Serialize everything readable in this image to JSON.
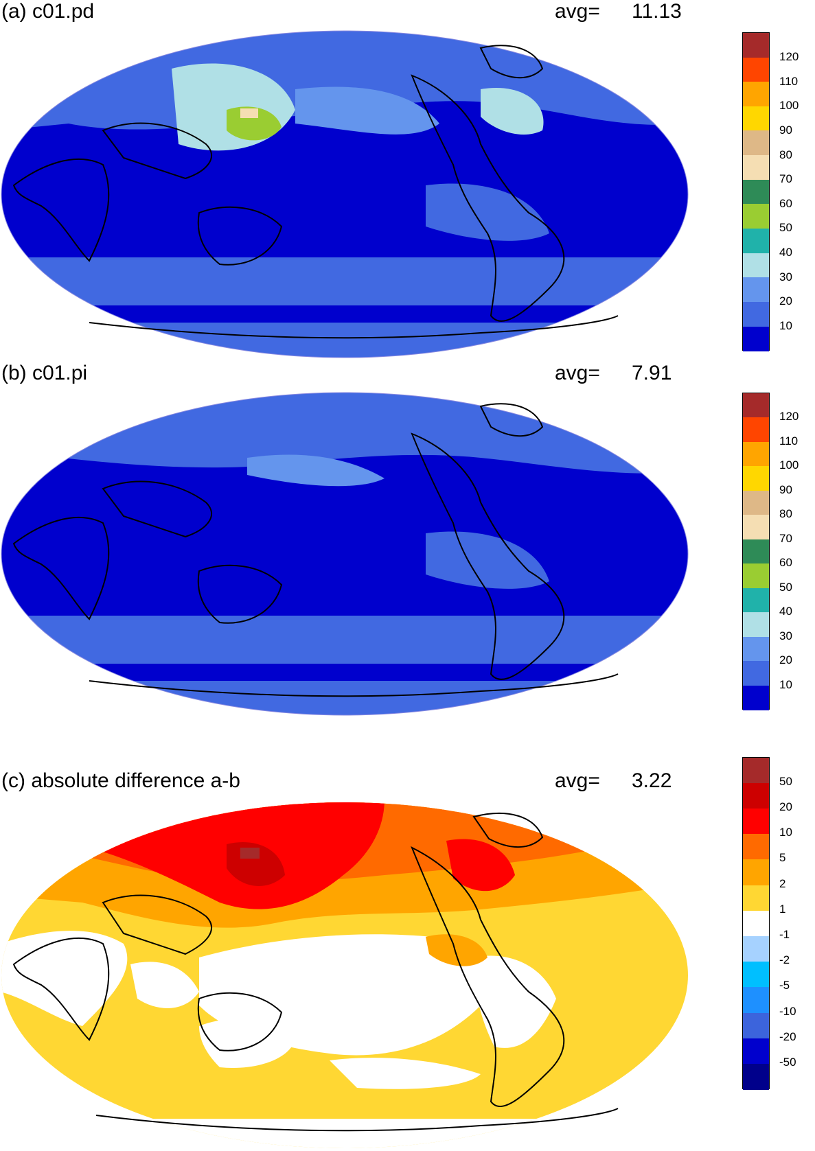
{
  "panels": [
    {
      "title": "(a) c01.pd",
      "avg_label": "avg=",
      "avg_value": "11.13",
      "legend": {
        "labels": [
          "120",
          "110",
          "100",
          "90",
          "80",
          "70",
          "60",
          "50",
          "40",
          "30",
          "20",
          "10"
        ],
        "colors": [
          "#a52a2a",
          "#ff4500",
          "#ffa500",
          "#ffd700",
          "#deb887",
          "#f5deb3",
          "#2e8b57",
          "#9acd32",
          "#20b2aa",
          "#b0e0e6",
          "#6495ed",
          "#4169e1",
          "#0000cd"
        ]
      }
    },
    {
      "title": "(b) c01.pi",
      "avg_label": "avg=",
      "avg_value": "7.91",
      "legend": {
        "labels": [
          "120",
          "110",
          "100",
          "90",
          "80",
          "70",
          "60",
          "50",
          "40",
          "30",
          "20",
          "10"
        ],
        "colors": [
          "#a52a2a",
          "#ff4500",
          "#ffa500",
          "#ffd700",
          "#deb887",
          "#f5deb3",
          "#2e8b57",
          "#9acd32",
          "#20b2aa",
          "#b0e0e6",
          "#6495ed",
          "#4169e1",
          "#0000cd"
        ]
      }
    },
    {
      "title": "(c) absolute difference a-b",
      "avg_label": "avg=",
      "avg_value": "3.22",
      "legend": {
        "labels": [
          "50",
          "20",
          "10",
          "5",
          "2",
          "1",
          "-1",
          "-2",
          "-5",
          "-10",
          "-20",
          "-50"
        ],
        "colors": [
          "#a52a2a",
          "#cd0000",
          "#ff0000",
          "#ff6a00",
          "#ffa500",
          "#ffd733",
          "#ffffff",
          "#a6d2ff",
          "#00bfff",
          "#1e90ff",
          "#3c64dc",
          "#0000cd",
          "#00008b"
        ]
      }
    }
  ]
}
